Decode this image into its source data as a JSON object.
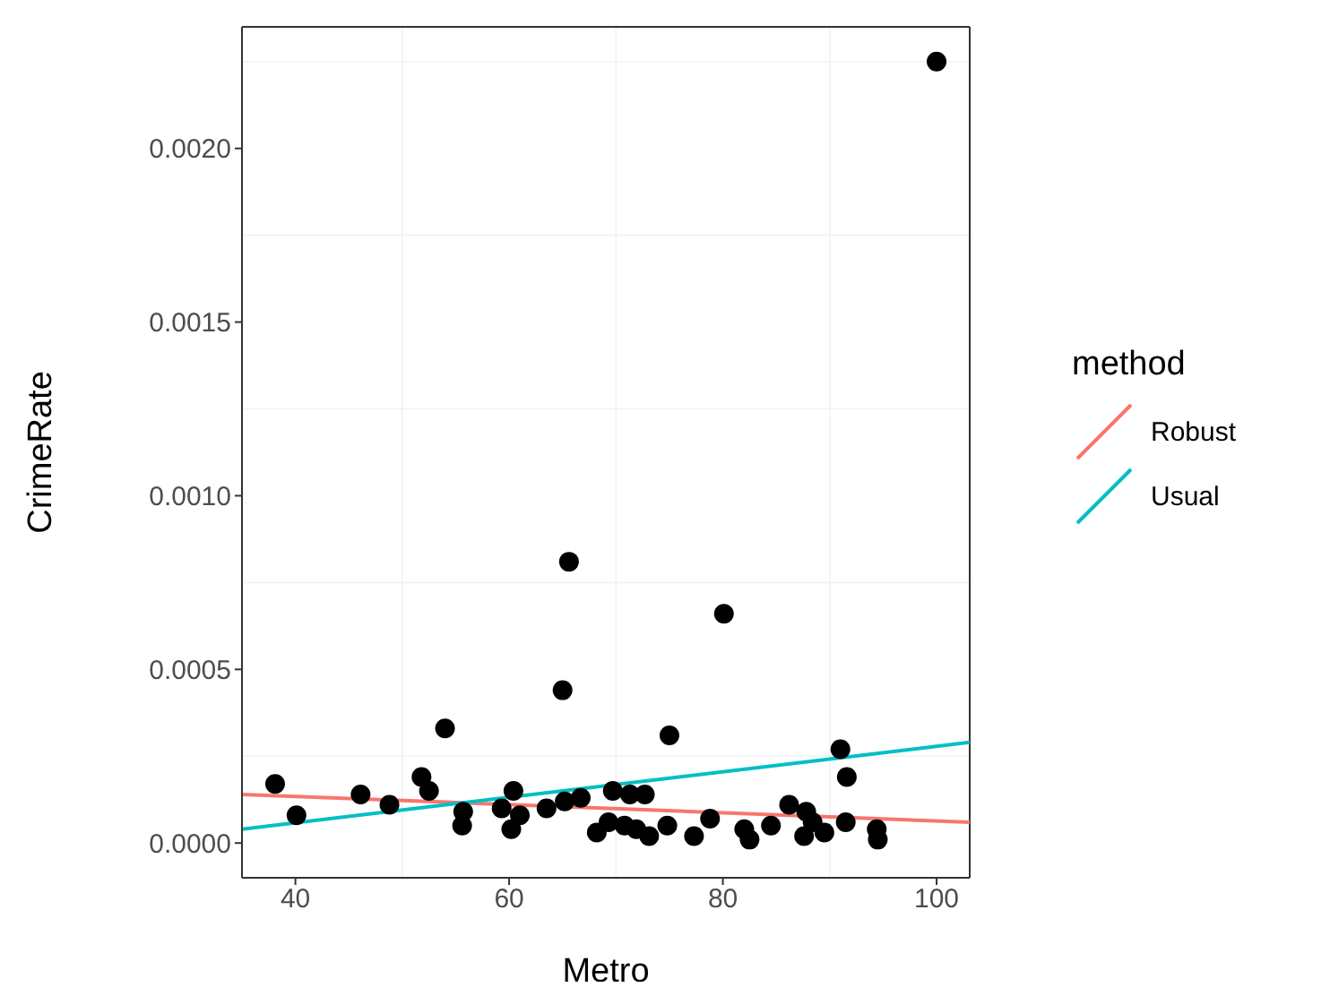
{
  "chart_data": {
    "type": "scatter",
    "xlabel": "Metro",
    "ylabel": "CrimeRate",
    "legend_title": "method",
    "legend": "right",
    "grid": true,
    "line_style": "solid",
    "xlim": [
      35,
      103.1
    ],
    "xticks": [
      40,
      60,
      80,
      100
    ],
    "ylim": [
      -0.0001,
      0.00235
    ],
    "yticks": [
      {
        "value": 0,
        "label": "0.0000"
      },
      {
        "value": 0.0005,
        "label": "0.0005"
      },
      {
        "value": 0.001,
        "label": "0.0010"
      },
      {
        "value": 0.0015,
        "label": "0.0015"
      },
      {
        "value": 0.002,
        "label": "0.0020"
      }
    ],
    "series": [
      {
        "marker": "circle",
        "color": "#000000",
        "x": [
          100,
          65.6,
          80.1,
          65.0,
          38.1,
          40.1,
          46.1,
          48.8,
          51.8,
          52.5,
          54.0,
          55.7,
          55.6,
          59.3,
          60.4,
          61.0,
          60.2,
          63.5,
          65.2,
          66.7,
          68.2,
          69.7,
          71.3,
          72.7,
          69.3,
          70.8,
          71.9,
          73.1,
          74.8,
          75.0,
          77.3,
          78.8,
          82.0,
          82.5,
          84.5,
          86.2,
          87.6,
          87.8,
          88.4,
          89.5,
          91.0,
          91.6,
          91.5,
          94.4,
          94.5
        ],
        "values": [
          0.00225,
          0.00081,
          0.00066,
          0.00044,
          0.00017,
          8e-05,
          0.00014,
          0.00011,
          0.00019,
          0.00015,
          0.00033,
          9e-05,
          5e-05,
          0.0001,
          0.00015,
          8e-05,
          4e-05,
          0.0001,
          0.00012,
          0.00013,
          3e-05,
          0.00015,
          0.00014,
          0.00014,
          6e-05,
          5e-05,
          4e-05,
          2e-05,
          5e-05,
          0.00031,
          2e-05,
          7e-05,
          4e-05,
          1e-05,
          5e-05,
          0.00011,
          2e-05,
          9e-05,
          6e-05,
          3e-05,
          0.00027,
          0.00019,
          6e-05,
          4e-05,
          1e-05
        ]
      },
      {
        "type": "line",
        "name": "Robust",
        "color": "#f8766d",
        "x": [
          35,
          103.1
        ],
        "values": [
          0.00014,
          6e-05
        ]
      },
      {
        "type": "line",
        "name": "Usual",
        "color": "#00bfc4",
        "x": [
          35,
          103.1
        ],
        "values": [
          4e-05,
          0.00029
        ]
      }
    ]
  }
}
